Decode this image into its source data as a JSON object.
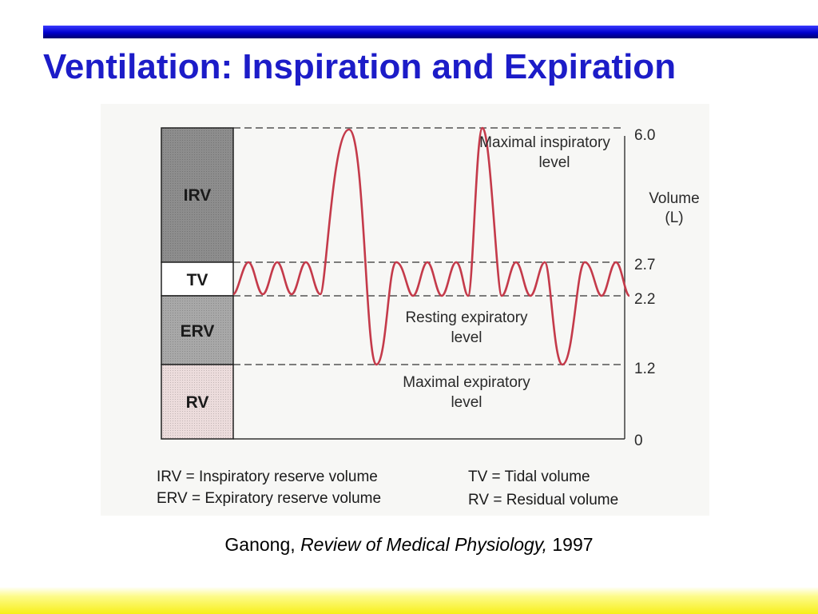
{
  "slide": {
    "title": "Ventilation: Inspiration and Expiration",
    "citation": {
      "author": "Ganong, ",
      "work": "Review of Medical Physiology,",
      "year": " 1997"
    }
  },
  "colors": {
    "title": "#1c1cc8",
    "top_bar": "#0000cc",
    "bottom_bar": "#f7ef1a",
    "trace": "#c43a4a"
  },
  "diagram": {
    "boxes": [
      {
        "label": "IRV",
        "from": 2.7,
        "to": 6.0,
        "fill": "#8d8d8d"
      },
      {
        "label": "TV",
        "from": 2.2,
        "to": 2.7,
        "fill": "#ffffff"
      },
      {
        "label": "ERV",
        "from": 1.2,
        "to": 2.2,
        "fill": "#a8a8a8"
      },
      {
        "label": "RV",
        "from": 0,
        "to": 1.2,
        "fill": "#ecdcdc"
      }
    ],
    "axis": {
      "title_line1": "Volume",
      "title_line2": "(L)",
      "ticks": [
        "6.0",
        "2.7",
        "2.2",
        "1.2",
        "0"
      ]
    },
    "annotations": {
      "max_insp_line1": "Maximal inspiratory",
      "max_insp_line2": "level",
      "resting_line1": "Resting expiratory",
      "resting_line2": "level",
      "max_exp_line1": "Maximal expiratory",
      "max_exp_line2": "level"
    },
    "legend": {
      "irv": "IRV = Inspiratory reserve volume",
      "erv": "ERV = Expiratory reserve volume",
      "tv": "TV = Tidal volume",
      "rv": "RV = Residual volume"
    }
  }
}
